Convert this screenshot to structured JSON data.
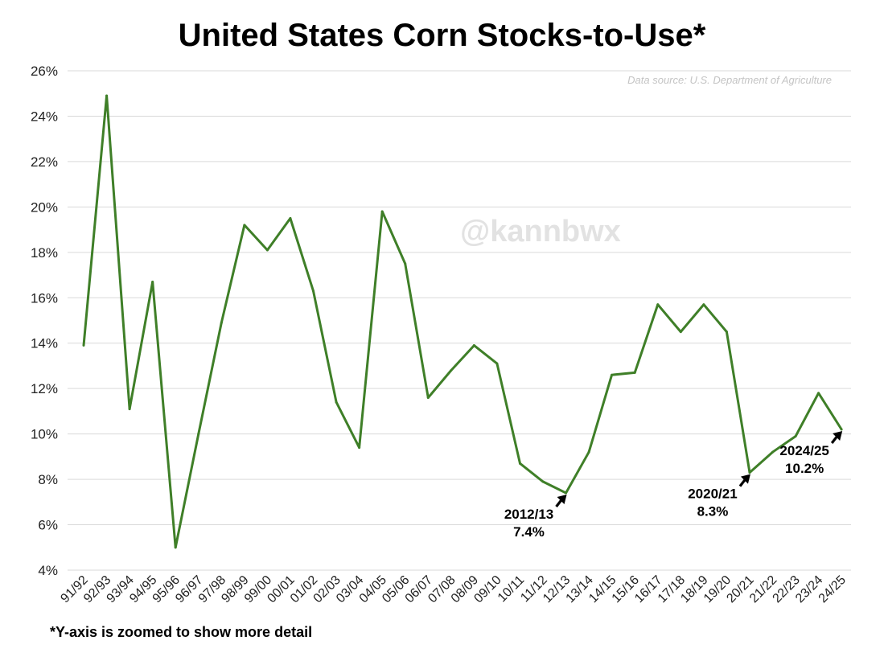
{
  "chart_data": {
    "type": "line",
    "title": "United States Corn Stocks-to-Use*",
    "source": "Data source: U.S. Department of Agriculture",
    "watermark": "@kannbwx",
    "footnote": "*Y-axis is zoomed to show more detail",
    "xlabel": "",
    "ylabel": "",
    "ylim": [
      4,
      26
    ],
    "yticks": [
      4,
      6,
      8,
      10,
      12,
      14,
      16,
      18,
      20,
      22,
      24,
      26
    ],
    "ytick_labels": [
      "4%",
      "6%",
      "8%",
      "10%",
      "12%",
      "14%",
      "16%",
      "18%",
      "20%",
      "22%",
      "24%",
      "26%"
    ],
    "grid": true,
    "line_color": "#3f7f28",
    "categories": [
      "91/92",
      "92/93",
      "93/94",
      "94/95",
      "95/96",
      "96/97",
      "97/98",
      "98/99",
      "99/00",
      "00/01",
      "01/02",
      "02/03",
      "03/04",
      "04/05",
      "05/06",
      "06/07",
      "07/08",
      "08/09",
      "09/10",
      "10/11",
      "11/12",
      "12/13",
      "13/14",
      "14/15",
      "15/16",
      "16/17",
      "17/18",
      "18/19",
      "19/20",
      "20/21",
      "21/22",
      "22/23",
      "23/24",
      "24/25"
    ],
    "series": [
      {
        "values": [
          13.9,
          24.9,
          11.1,
          16.7,
          5.0,
          10.0,
          14.9,
          19.2,
          18.1,
          19.5,
          16.3,
          11.4,
          9.4,
          19.8,
          17.5,
          11.6,
          12.8,
          13.9,
          13.1,
          8.7,
          7.9,
          7.4,
          9.2,
          12.6,
          12.7,
          15.7,
          14.5,
          15.7,
          14.5,
          8.3,
          9.2,
          9.9,
          11.8,
          10.2
        ]
      }
    ],
    "annotations": [
      {
        "index": 21,
        "line1": "2012/13",
        "line2": "7.4%"
      },
      {
        "index": 29,
        "line1": "2020/21",
        "line2": "8.3%"
      },
      {
        "index": 33,
        "line1": "2024/25",
        "line2": "10.2%"
      }
    ]
  }
}
